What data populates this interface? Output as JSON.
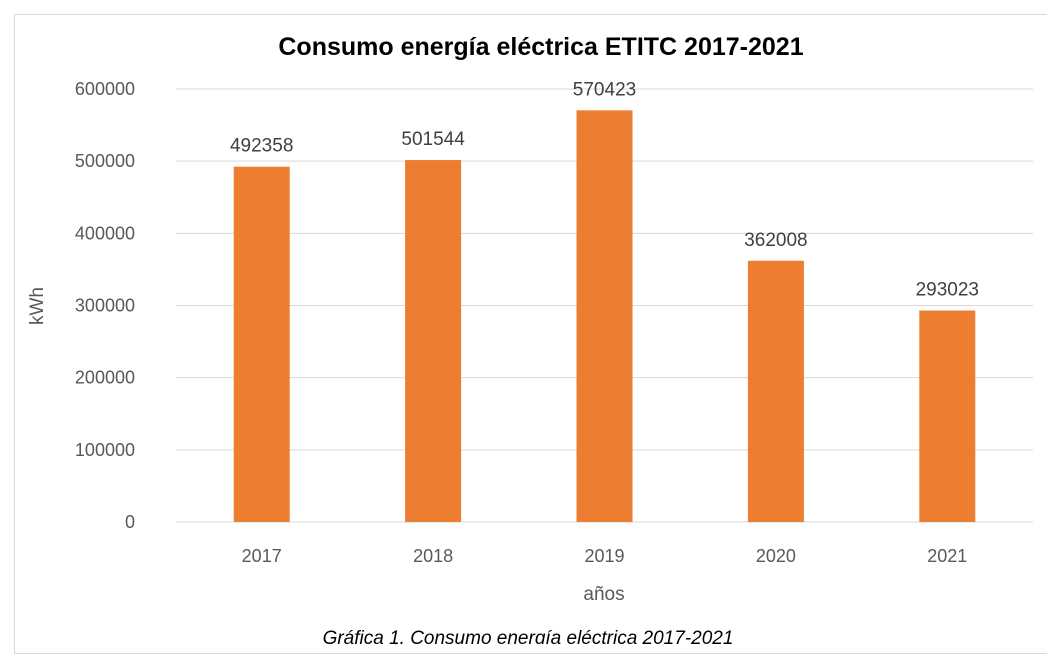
{
  "chart_data": {
    "type": "bar",
    "title": "Consumo energía eléctrica ETITC 2017-2021",
    "xlabel": "años",
    "ylabel": "kWh",
    "categories": [
      "2017",
      "2018",
      "2019",
      "2020",
      "2021"
    ],
    "values": [
      492358,
      501544,
      570423,
      362008,
      293023
    ],
    "data_labels": [
      "492358",
      "501544",
      "570423",
      "362008",
      "293023"
    ],
    "ylim": [
      0,
      600000
    ],
    "yticks": [
      0,
      100000,
      200000,
      300000,
      400000,
      500000,
      600000
    ],
    "ytick_labels": [
      "0",
      "100000",
      "200000",
      "300000",
      "400000",
      "500000",
      "600000"
    ],
    "grid": true,
    "legend": "none",
    "bar_color": "#ed7d31"
  },
  "caption": "Gráfica 1. Consumo energía eléctrica 2017-2021"
}
